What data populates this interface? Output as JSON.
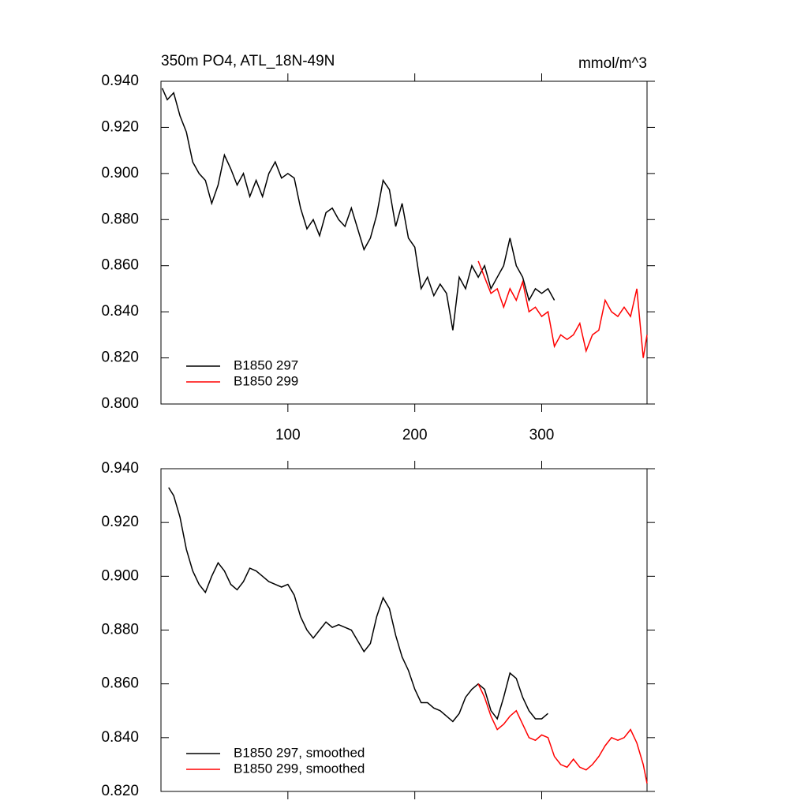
{
  "chart_data": [
    {
      "type": "line",
      "title": "350m PO4, ATL_18N-49N",
      "subtitle": "mmol/m^3",
      "xlim": [
        0,
        383
      ],
      "xticks": [
        100,
        200,
        300
      ],
      "ylim": [
        0.8,
        0.94
      ],
      "yticks": [
        {
          "value": 0.8,
          "label": "0.800"
        },
        {
          "value": 0.82,
          "label": "0.820"
        },
        {
          "value": 0.84,
          "label": "0.840"
        },
        {
          "value": 0.86,
          "label": "0.860"
        },
        {
          "value": 0.88,
          "label": "0.880"
        },
        {
          "value": 0.9,
          "label": "0.900"
        },
        {
          "value": 0.92,
          "label": "0.920"
        },
        {
          "value": 0.94,
          "label": "0.940"
        }
      ],
      "legend": "lower left",
      "series": [
        {
          "name": "B1850 297",
          "color": "#000000",
          "x": [
            1,
            5,
            10,
            15,
            20,
            25,
            30,
            35,
            40,
            45,
            50,
            55,
            60,
            65,
            70,
            75,
            80,
            85,
            90,
            95,
            100,
            105,
            110,
            115,
            120,
            125,
            130,
            135,
            140,
            145,
            150,
            155,
            160,
            165,
            170,
            175,
            180,
            185,
            190,
            195,
            200,
            205,
            210,
            215,
            220,
            225,
            230,
            235,
            240,
            245,
            250,
            255,
            260,
            265,
            270,
            275,
            280,
            285,
            290,
            295,
            300,
            305,
            310
          ],
          "values": [
            0.937,
            0.932,
            0.935,
            0.925,
            0.918,
            0.905,
            0.9,
            0.897,
            0.887,
            0.895,
            0.908,
            0.902,
            0.895,
            0.9,
            0.89,
            0.897,
            0.89,
            0.9,
            0.905,
            0.898,
            0.9,
            0.898,
            0.885,
            0.876,
            0.88,
            0.873,
            0.883,
            0.885,
            0.88,
            0.877,
            0.885,
            0.876,
            0.867,
            0.872,
            0.882,
            0.897,
            0.893,
            0.877,
            0.887,
            0.872,
            0.868,
            0.85,
            0.855,
            0.847,
            0.852,
            0.848,
            0.832,
            0.855,
            0.85,
            0.86,
            0.855,
            0.86,
            0.85,
            0.855,
            0.86,
            0.872,
            0.86,
            0.855,
            0.845,
            0.85,
            0.848,
            0.85,
            0.845
          ]
        },
        {
          "name": "B1850 299",
          "color": "#ff0000",
          "x": [
            250,
            255,
            260,
            265,
            270,
            275,
            280,
            285,
            290,
            295,
            300,
            305,
            310,
            315,
            320,
            325,
            330,
            335,
            340,
            345,
            350,
            355,
            360,
            365,
            370,
            375,
            380,
            383
          ],
          "values": [
            0.862,
            0.855,
            0.848,
            0.85,
            0.842,
            0.85,
            0.845,
            0.853,
            0.84,
            0.842,
            0.838,
            0.84,
            0.825,
            0.83,
            0.828,
            0.83,
            0.835,
            0.823,
            0.83,
            0.832,
            0.845,
            0.84,
            0.838,
            0.842,
            0.838,
            0.85,
            0.82,
            0.83
          ]
        }
      ]
    },
    {
      "type": "line",
      "xlim": [
        0,
        383
      ],
      "xticks": [
        100,
        200,
        300
      ],
      "xtick_labels_hidden": true,
      "ylim": [
        0.82,
        0.94
      ],
      "yticks": [
        {
          "value": 0.82,
          "label": "0.820"
        },
        {
          "value": 0.84,
          "label": "0.840"
        },
        {
          "value": 0.86,
          "label": "0.860"
        },
        {
          "value": 0.88,
          "label": "0.880"
        },
        {
          "value": 0.9,
          "label": "0.900"
        },
        {
          "value": 0.92,
          "label": "0.920"
        },
        {
          "value": 0.94,
          "label": "0.940"
        }
      ],
      "legend": "lower left",
      "series": [
        {
          "name": "B1850 297, smoothed",
          "color": "#000000",
          "x": [
            6,
            10,
            15,
            20,
            25,
            30,
            35,
            40,
            45,
            50,
            55,
            60,
            65,
            70,
            75,
            80,
            85,
            90,
            95,
            100,
            105,
            110,
            115,
            120,
            125,
            130,
            135,
            140,
            145,
            150,
            155,
            160,
            165,
            170,
            175,
            180,
            185,
            190,
            195,
            200,
            205,
            210,
            215,
            220,
            225,
            230,
            235,
            240,
            245,
            250,
            255,
            260,
            265,
            270,
            275,
            280,
            285,
            290,
            295,
            300,
            305
          ],
          "values": [
            0.933,
            0.93,
            0.922,
            0.91,
            0.902,
            0.897,
            0.894,
            0.9,
            0.905,
            0.902,
            0.897,
            0.895,
            0.898,
            0.903,
            0.902,
            0.9,
            0.898,
            0.897,
            0.896,
            0.897,
            0.893,
            0.885,
            0.88,
            0.877,
            0.88,
            0.883,
            0.881,
            0.882,
            0.881,
            0.88,
            0.876,
            0.872,
            0.875,
            0.885,
            0.892,
            0.888,
            0.878,
            0.87,
            0.865,
            0.858,
            0.853,
            0.853,
            0.851,
            0.85,
            0.848,
            0.846,
            0.849,
            0.855,
            0.858,
            0.86,
            0.858,
            0.85,
            0.847,
            0.855,
            0.864,
            0.862,
            0.855,
            0.85,
            0.847,
            0.847,
            0.849
          ]
        },
        {
          "name": "B1850 299, smoothed",
          "color": "#ff0000",
          "x": [
            250,
            255,
            260,
            265,
            270,
            275,
            280,
            285,
            290,
            295,
            300,
            305,
            310,
            315,
            320,
            325,
            330,
            335,
            340,
            345,
            350,
            355,
            360,
            365,
            370,
            375,
            380,
            383
          ],
          "values": [
            0.86,
            0.855,
            0.848,
            0.843,
            0.845,
            0.848,
            0.85,
            0.845,
            0.84,
            0.839,
            0.841,
            0.84,
            0.833,
            0.83,
            0.829,
            0.832,
            0.829,
            0.828,
            0.83,
            0.833,
            0.837,
            0.84,
            0.839,
            0.84,
            0.843,
            0.838,
            0.83,
            0.823
          ]
        }
      ]
    }
  ]
}
